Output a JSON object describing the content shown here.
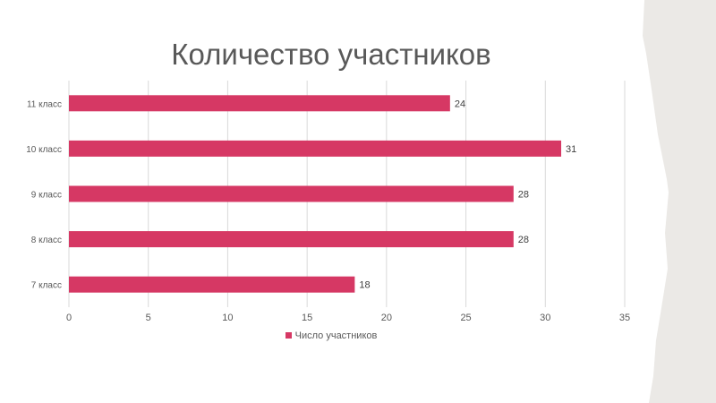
{
  "chart_data": {
    "type": "bar",
    "orientation": "horizontal",
    "title": "Количество участников",
    "categories": [
      "7 класс",
      "8 класс",
      "9 класс",
      "10 класс",
      "11 класс"
    ],
    "series": [
      {
        "name": "Число участников",
        "values": [
          18,
          28,
          28,
          31,
          24
        ],
        "color": "#d63864"
      }
    ],
    "xlim": [
      0,
      35
    ],
    "xticks": [
      0,
      5,
      10,
      15,
      20,
      25,
      30,
      35
    ],
    "grid": "vertical",
    "data_labels": true,
    "legend": "bottom"
  },
  "colors": {
    "background": "#ffffff",
    "paper_edge": "#ebe9e6",
    "text": "#595959",
    "grid": "#d9d9d9"
  }
}
